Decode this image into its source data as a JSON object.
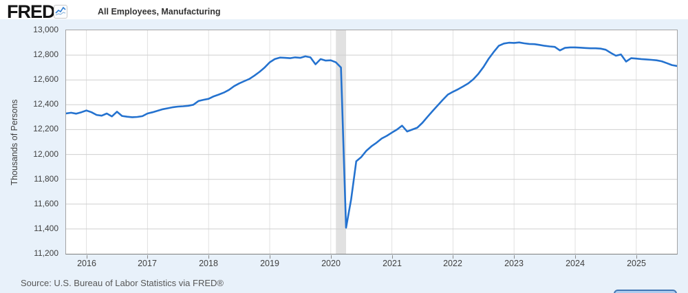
{
  "header": {
    "logo_text": "FRED",
    "logo_reg": "®",
    "legend": {
      "label": "All Employees, Manufacturing",
      "swatch_color": "#2472cf"
    }
  },
  "chart_data": {
    "type": "line",
    "title": "All Employees, Manufacturing",
    "ylabel": "Thousands of Persons",
    "xlabel": "",
    "grid": true,
    "legend_position": "top-left",
    "line_color": "#2472cf",
    "ylim": [
      11200,
      13000
    ],
    "yticks": [
      13000,
      12800,
      12600,
      12400,
      12200,
      12000,
      11800,
      11600,
      11400,
      11200
    ],
    "year_ticks": [
      2016,
      2017,
      2018,
      2019,
      2020,
      2021,
      2022,
      2023,
      2024,
      2025
    ],
    "frequency": "monthly",
    "x_start": "2015-09",
    "x_end": "2025-09",
    "recession_band": {
      "from": "2020-02",
      "to": "2020-04",
      "color": "#d9d9d9"
    },
    "values": [
      12330,
      12336,
      12328,
      12340,
      12354,
      12340,
      12318,
      12312,
      12330,
      12306,
      12344,
      12310,
      12304,
      12300,
      12302,
      12308,
      12330,
      12340,
      12352,
      12364,
      12372,
      12380,
      12385,
      12388,
      12392,
      12400,
      12430,
      12440,
      12448,
      12468,
      12482,
      12498,
      12520,
      12550,
      12572,
      12590,
      12608,
      12635,
      12665,
      12700,
      12742,
      12768,
      12780,
      12778,
      12775,
      12782,
      12778,
      12790,
      12782,
      12726,
      12768,
      12756,
      12758,
      12742,
      12700,
      11410,
      11640,
      11945,
      11980,
      12030,
      12066,
      12095,
      12128,
      12150,
      12176,
      12200,
      12232,
      12185,
      12200,
      12216,
      12255,
      12303,
      12350,
      12395,
      12440,
      12482,
      12505,
      12525,
      12548,
      12572,
      12605,
      12650,
      12705,
      12770,
      12825,
      12875,
      12893,
      12900,
      12898,
      12902,
      12895,
      12890,
      12888,
      12882,
      12875,
      12870,
      12866,
      12838,
      12858,
      12862,
      12862,
      12860,
      12857,
      12855,
      12855,
      12852,
      12843,
      12818,
      12795,
      12805,
      12748,
      12775,
      12772,
      12768,
      12765,
      12762,
      12758,
      12750,
      12735,
      12720,
      12712
    ]
  },
  "footer": {
    "source": "Source: U.S. Bureau of Labor Statistics via FRED®"
  }
}
